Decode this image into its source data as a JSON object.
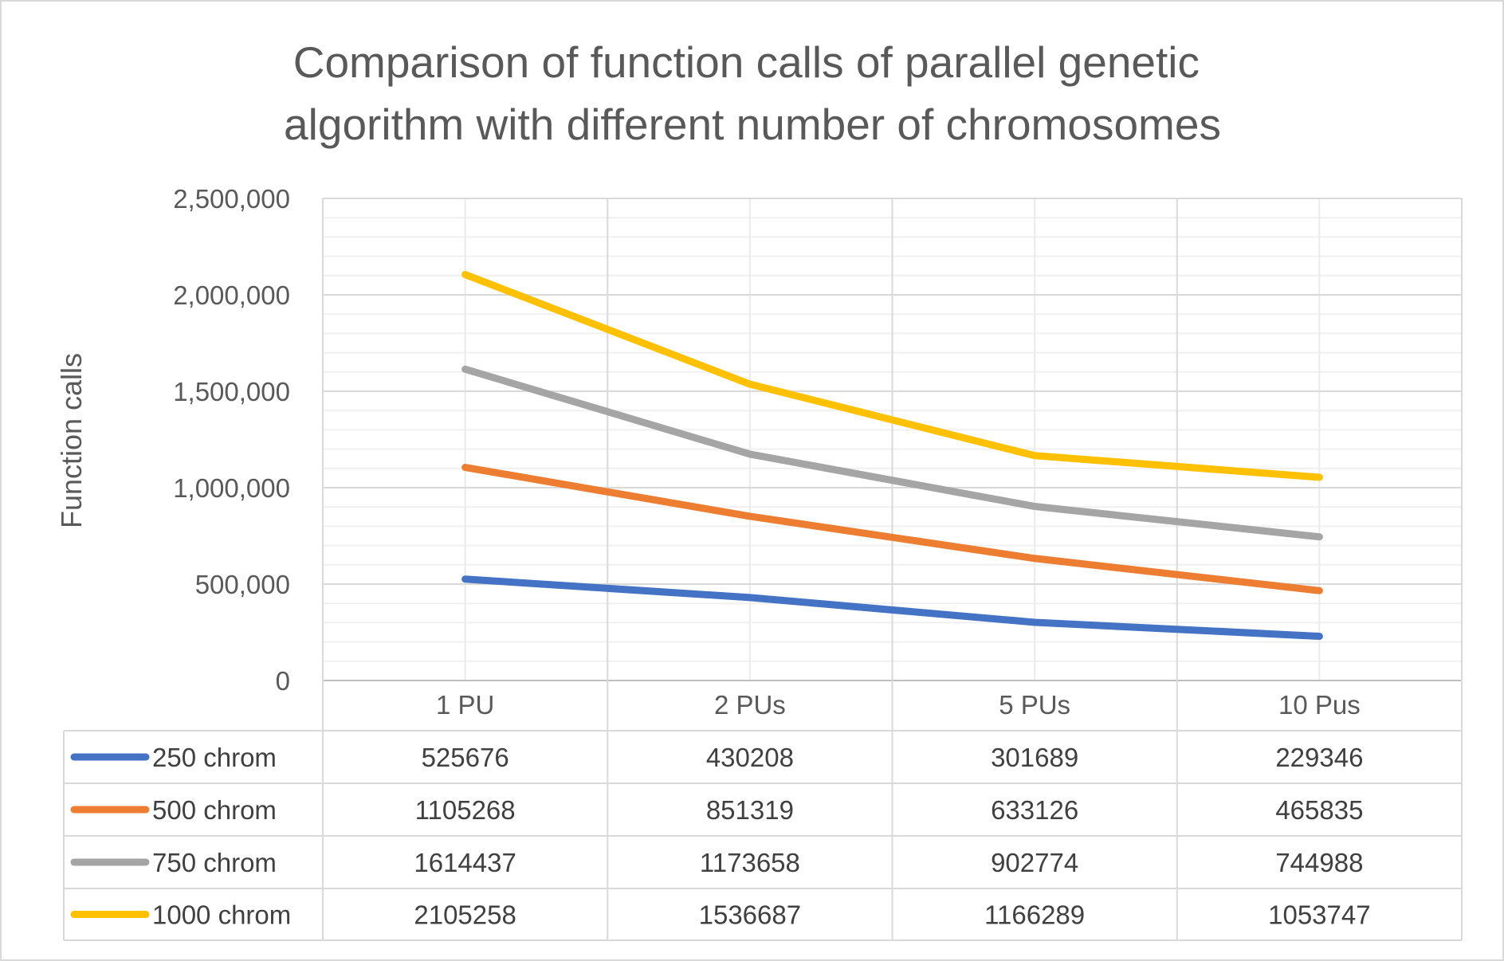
{
  "chart_data": {
    "type": "line",
    "title": "Comparison of function calls of parallel genetic algorithm with different number of chromosomes",
    "title_lines": [
      "Comparison of function calls of parallel genetic",
      "algorithm with different number of chromosomes"
    ],
    "ylabel": "Function calls",
    "xlabel": "",
    "ylim": [
      0,
      2500000
    ],
    "ytick_values": [
      0,
      500000,
      1000000,
      1500000,
      2000000,
      2500000
    ],
    "ytick_labels": [
      "0",
      "500,000",
      "1,000,000",
      "1,500,000",
      "2,000,000",
      "2,500,000"
    ],
    "categories": [
      "1 PU",
      "2 PUs",
      "5 PUs",
      "10 Pus"
    ],
    "grid": true,
    "legend": "data-table",
    "series": [
      {
        "name": "250 chrom",
        "color": "#4472C4",
        "values": [
          525676,
          430208,
          301689,
          229346
        ],
        "labels": [
          "525676",
          "430208",
          "301689",
          "229346"
        ]
      },
      {
        "name": "500 chrom",
        "color": "#ED7D31",
        "values": [
          1105268,
          851319,
          633126,
          465835
        ],
        "labels": [
          "1105268",
          "851319",
          "633126",
          "465835"
        ]
      },
      {
        "name": "750 chrom",
        "color": "#A5A5A5",
        "values": [
          1614437,
          1173658,
          902774,
          744988
        ],
        "labels": [
          "1614437",
          "1173658",
          "902774",
          "744988"
        ]
      },
      {
        "name": "1000 chrom",
        "color": "#FFC000",
        "values": [
          2105258,
          1536687,
          1166289,
          1053747
        ],
        "labels": [
          "2105258",
          "1536687",
          "1166289",
          "1053747"
        ]
      }
    ]
  }
}
